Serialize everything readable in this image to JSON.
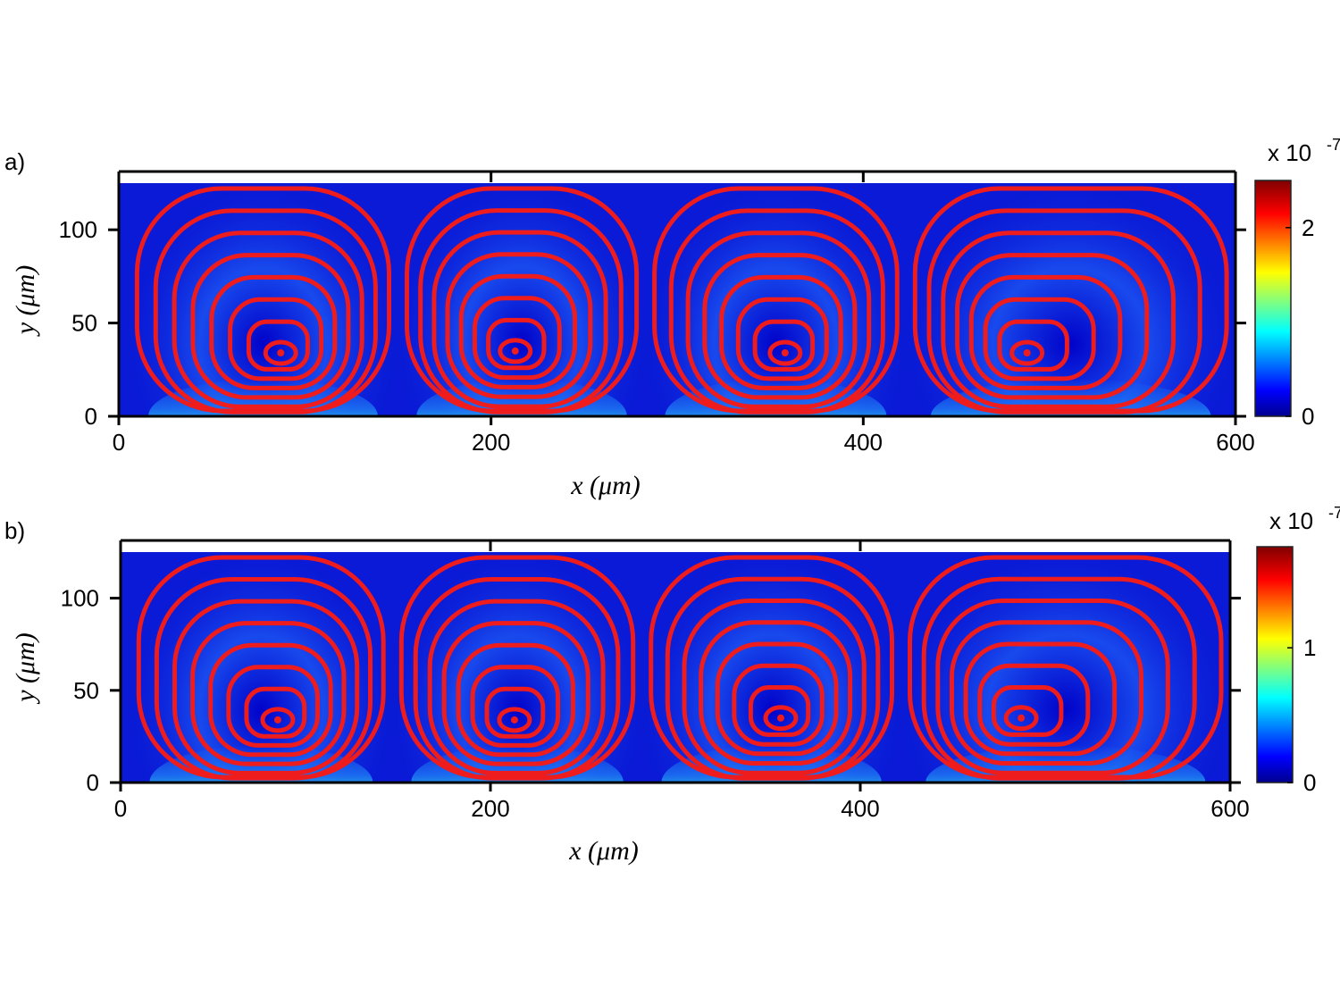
{
  "chart_data": [
    {
      "type": "heatmap",
      "panel_label": "a)",
      "xlabel": "x (μm)",
      "ylabel": "y (μm)",
      "xlim": [
        0,
        600
      ],
      "ylim": [
        0,
        125
      ],
      "xticks": [
        0,
        200,
        400,
        600
      ],
      "yticks": [
        0,
        50,
        100
      ],
      "colorbar": {
        "multiplier": "x 10",
        "exponent": "-7",
        "range": [
          0,
          2.5
        ],
        "ticks": [
          0,
          2
        ],
        "colormap": "jet"
      },
      "vortices": [
        {
          "center_x": 87,
          "center_y": 34,
          "x_range": [
            5,
            150
          ]
        },
        {
          "center_x": 213,
          "center_y": 35,
          "x_range": [
            150,
            283
          ]
        },
        {
          "center_x": 358,
          "center_y": 34,
          "x_range": [
            283,
            423
          ]
        },
        {
          "center_x": 488,
          "center_y": 34,
          "x_range": [
            423,
            600
          ]
        }
      ],
      "streamline_color": "#ee1c1c"
    },
    {
      "type": "heatmap",
      "panel_label": "b)",
      "xlabel": "x (μm)",
      "ylabel": "y (μm)",
      "xlim": [
        0,
        600
      ],
      "ylim": [
        0,
        125
      ],
      "xticks": [
        0,
        200,
        400,
        600
      ],
      "yticks": [
        0,
        50,
        100
      ],
      "colorbar": {
        "multiplier": "x 10",
        "exponent": "-7",
        "range": [
          0,
          1.75
        ],
        "ticks": [
          0,
          1
        ],
        "colormap": "jet"
      },
      "vortices": [
        {
          "center_x": 85,
          "center_y": 34,
          "x_range": [
            5,
            147
          ]
        },
        {
          "center_x": 213,
          "center_y": 34,
          "x_range": [
            147,
            282
          ]
        },
        {
          "center_x": 357,
          "center_y": 35,
          "x_range": [
            282,
            422
          ]
        },
        {
          "center_x": 487,
          "center_y": 35,
          "x_range": [
            422,
            600
          ]
        }
      ],
      "streamline_color": "#ee1c1c"
    }
  ]
}
